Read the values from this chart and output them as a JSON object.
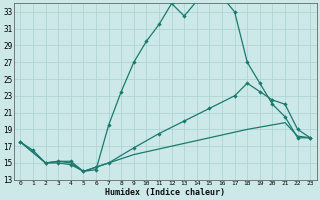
{
  "xlabel": "Humidex (Indice chaleur)",
  "xlim": [
    -0.5,
    23.5
  ],
  "ylim": [
    13,
    34
  ],
  "yticks": [
    13,
    15,
    17,
    19,
    21,
    23,
    25,
    27,
    29,
    31,
    33
  ],
  "xticks": [
    0,
    1,
    2,
    3,
    4,
    5,
    6,
    7,
    8,
    9,
    10,
    11,
    12,
    13,
    14,
    15,
    16,
    17,
    18,
    19,
    20,
    21,
    22,
    23
  ],
  "bg_color": "#cde8e8",
  "line_color": "#1a7a6e",
  "grid_color": "#b0d4d4",
  "line1_x": [
    0,
    1,
    2,
    3,
    4,
    5,
    6,
    7,
    8,
    9,
    10,
    11,
    12,
    13,
    14,
    15,
    16,
    17,
    18,
    19,
    20,
    21,
    22,
    23
  ],
  "line1_y": [
    17.5,
    16.5,
    15.0,
    15.0,
    14.8,
    14.0,
    14.2,
    19.5,
    23.5,
    27.0,
    29.5,
    31.5,
    34.0,
    32.5,
    34.3,
    34.5,
    34.8,
    33.0,
    27.0,
    24.5,
    22.0,
    20.5,
    18.0,
    18.0
  ],
  "line2_x": [
    0,
    2,
    3,
    4,
    5,
    6,
    7,
    9,
    11,
    13,
    15,
    17,
    18,
    19,
    20,
    21,
    22,
    23
  ],
  "line2_y": [
    17.5,
    15.0,
    15.2,
    15.2,
    14.0,
    14.5,
    15.0,
    16.8,
    18.5,
    20.0,
    21.5,
    23.0,
    24.5,
    23.5,
    22.5,
    22.0,
    19.0,
    18.0
  ],
  "line3_x": [
    0,
    2,
    3,
    4,
    5,
    6,
    9,
    12,
    15,
    18,
    21,
    22,
    23
  ],
  "line3_y": [
    17.5,
    15.0,
    15.2,
    15.0,
    14.0,
    14.5,
    16.0,
    17.0,
    18.0,
    19.0,
    19.8,
    18.2,
    18.0
  ]
}
